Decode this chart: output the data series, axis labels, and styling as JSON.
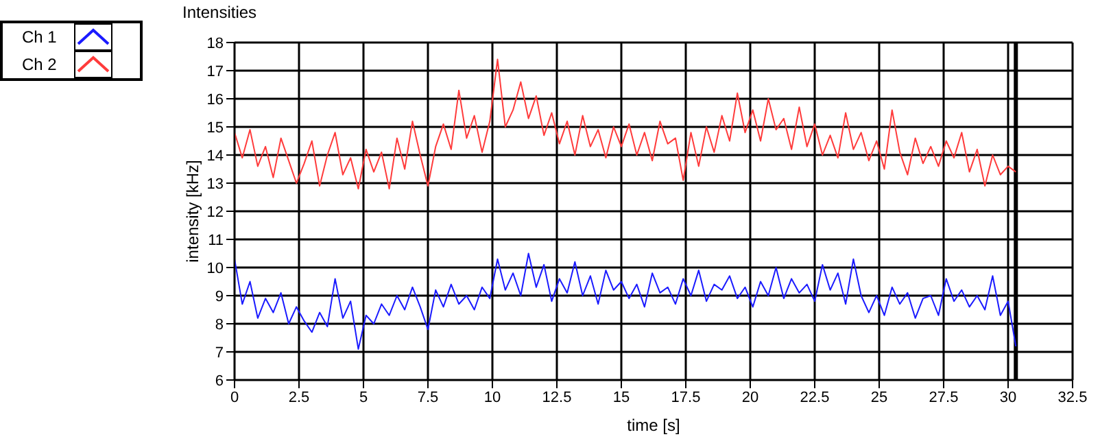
{
  "chart_data": {
    "type": "line",
    "title": "Intensities",
    "xlabel": "time [s]",
    "ylabel": "intensity [kHz]",
    "x": [
      0,
      0.3,
      0.6,
      0.9,
      1.2,
      1.5,
      1.8,
      2.1,
      2.4,
      2.7,
      3,
      3.3,
      3.6,
      3.9,
      4.2,
      4.5,
      4.8,
      5.1,
      5.4,
      5.7,
      6,
      6.3,
      6.6,
      6.9,
      7.2,
      7.5,
      7.8,
      8.1,
      8.4,
      8.7,
      9,
      9.3,
      9.6,
      9.9,
      10.2,
      10.5,
      10.8,
      11.1,
      11.4,
      11.7,
      12,
      12.3,
      12.6,
      12.9,
      13.2,
      13.5,
      13.8,
      14.1,
      14.4,
      14.7,
      15,
      15.3,
      15.6,
      15.9,
      16.2,
      16.5,
      16.8,
      17.1,
      17.4,
      17.7,
      18,
      18.3,
      18.6,
      18.9,
      19.2,
      19.5,
      19.8,
      20.1,
      20.4,
      20.7,
      21,
      21.3,
      21.6,
      21.9,
      22.2,
      22.5,
      22.8,
      23.1,
      23.4,
      23.7,
      24,
      24.3,
      24.6,
      24.9,
      25.2,
      25.5,
      25.8,
      26.1,
      26.4,
      26.7,
      27,
      27.3,
      27.6,
      27.9,
      28.2,
      28.5,
      28.8,
      29.1,
      29.4,
      29.7,
      30,
      30.3
    ],
    "series": [
      {
        "name": "Ch 1",
        "color": "#1a1aff",
        "values": [
          10.3,
          8.7,
          9.5,
          8.2,
          8.9,
          8.4,
          9.1,
          8.0,
          8.6,
          8.1,
          7.7,
          8.4,
          7.9,
          9.6,
          8.2,
          8.8,
          7.1,
          8.3,
          8.0,
          8.7,
          8.3,
          9.0,
          8.5,
          9.3,
          8.6,
          7.8,
          9.2,
          8.6,
          9.4,
          8.7,
          9.0,
          8.5,
          9.3,
          8.9,
          10.3,
          9.2,
          9.8,
          9.0,
          10.5,
          9.3,
          10.1,
          8.8,
          9.6,
          9.1,
          10.2,
          9.0,
          9.7,
          8.7,
          9.9,
          9.2,
          9.5,
          8.9,
          9.4,
          8.6,
          9.8,
          9.1,
          9.3,
          8.7,
          9.6,
          9.0,
          9.9,
          8.8,
          9.4,
          9.2,
          9.7,
          8.9,
          9.3,
          8.6,
          9.5,
          9.0,
          10.0,
          8.9,
          9.6,
          9.1,
          9.4,
          8.8,
          10.1,
          9.2,
          9.8,
          8.7,
          10.3,
          9.0,
          8.4,
          9.0,
          8.3,
          9.3,
          8.7,
          9.1,
          8.2,
          8.9,
          9.0,
          8.3,
          9.6,
          8.8,
          9.2,
          8.6,
          9.0,
          8.5,
          9.7,
          8.3,
          8.8,
          7.2
        ]
      },
      {
        "name": "Ch 2",
        "color": "#ff3b3b",
        "values": [
          14.8,
          13.9,
          14.9,
          13.6,
          14.3,
          13.2,
          14.6,
          13.8,
          13.0,
          13.7,
          14.5,
          12.9,
          14.0,
          14.8,
          13.3,
          13.9,
          12.8,
          14.2,
          13.4,
          14.1,
          12.8,
          14.6,
          13.5,
          15.2,
          14.0,
          12.9,
          14.3,
          15.1,
          14.2,
          16.3,
          14.6,
          15.4,
          14.1,
          15.2,
          17.4,
          15.0,
          15.6,
          16.6,
          15.3,
          16.1,
          14.7,
          15.5,
          14.4,
          15.2,
          14.0,
          15.4,
          14.3,
          14.9,
          13.9,
          15.0,
          14.3,
          15.1,
          14.0,
          14.8,
          13.8,
          15.2,
          14.4,
          14.6,
          13.1,
          14.8,
          13.6,
          15.0,
          14.1,
          15.4,
          14.5,
          16.2,
          14.8,
          15.6,
          14.5,
          16.0,
          14.9,
          15.3,
          14.2,
          15.7,
          14.3,
          15.1,
          14.0,
          14.7,
          13.9,
          15.5,
          14.2,
          14.8,
          13.8,
          14.5,
          13.5,
          15.6,
          14.1,
          13.3,
          14.6,
          13.7,
          14.3,
          13.6,
          14.5,
          13.9,
          14.8,
          13.4,
          14.2,
          12.9,
          14.0,
          13.3,
          13.6,
          13.4
        ]
      }
    ],
    "xlim": [
      0,
      32.5
    ],
    "xticks": [
      0,
      2.5,
      5,
      7.5,
      10,
      12.5,
      15,
      17.5,
      20,
      22.5,
      25,
      27.5,
      30,
      32.5
    ],
    "ylim": [
      6,
      18
    ],
    "yticks": [
      6,
      7,
      8,
      9,
      10,
      11,
      12,
      13,
      14,
      15,
      16,
      17,
      18
    ],
    "ref_lines": [
      {
        "axis": "x",
        "value": 30.3,
        "color": "#000000"
      }
    ],
    "grid": true,
    "legend": "top left",
    "marker": "none",
    "line_style": "solid"
  }
}
